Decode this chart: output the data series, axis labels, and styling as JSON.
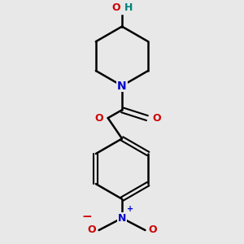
{
  "background_color": "#e8e8e8",
  "bond_color": "#000000",
  "N_color": "#0000cc",
  "O_color": "#cc0000",
  "H_color": "#008080",
  "figsize": [
    3.0,
    3.0
  ],
  "dpi": 100,
  "xlim": [
    -1.5,
    1.5
  ],
  "ylim": [
    -2.3,
    2.3
  ]
}
